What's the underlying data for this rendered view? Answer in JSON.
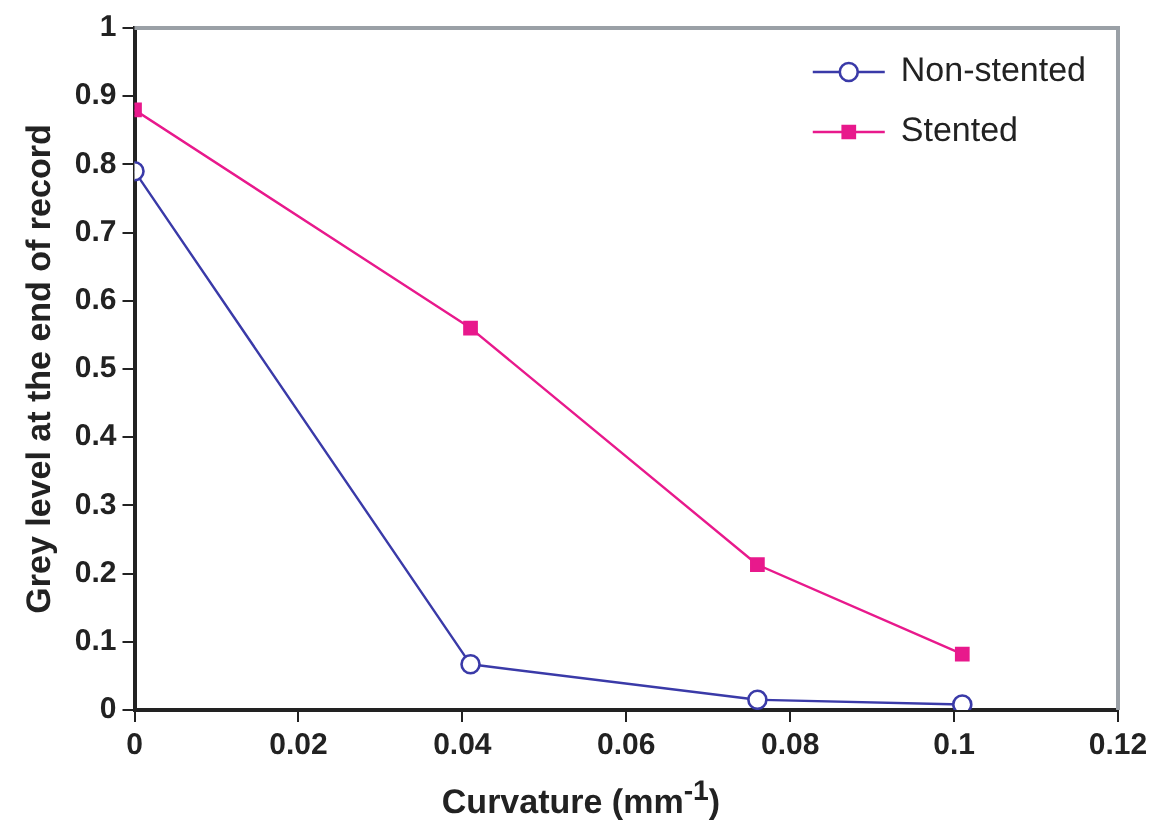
{
  "chart_data": {
    "type": "line",
    "xlabel": "Curvature (mm$^{-1}$)",
    "ylabel": "Grey level at the end of record",
    "x": [
      0,
      0.041,
      0.076,
      0.101
    ],
    "series": [
      {
        "name": "Non-stented",
        "color": "#3a3aa8",
        "marker": "circle",
        "values": [
          0.79,
          0.067,
          0.015,
          0.008
        ]
      },
      {
        "name": "Stented",
        "color": "#e8198c",
        "marker": "square",
        "values": [
          0.88,
          0.56,
          0.213,
          0.082
        ]
      }
    ],
    "xlim": [
      0,
      0.12
    ],
    "xticks": [
      0,
      0.02,
      0.04,
      0.06,
      0.08,
      0.1,
      0.12
    ],
    "ylim": [
      0,
      1
    ],
    "yticks": [
      0,
      0.1,
      0.2,
      0.3,
      0.4,
      0.5,
      0.6,
      0.7,
      0.8,
      0.9,
      1
    ],
    "grid": false,
    "legend": "top right"
  }
}
